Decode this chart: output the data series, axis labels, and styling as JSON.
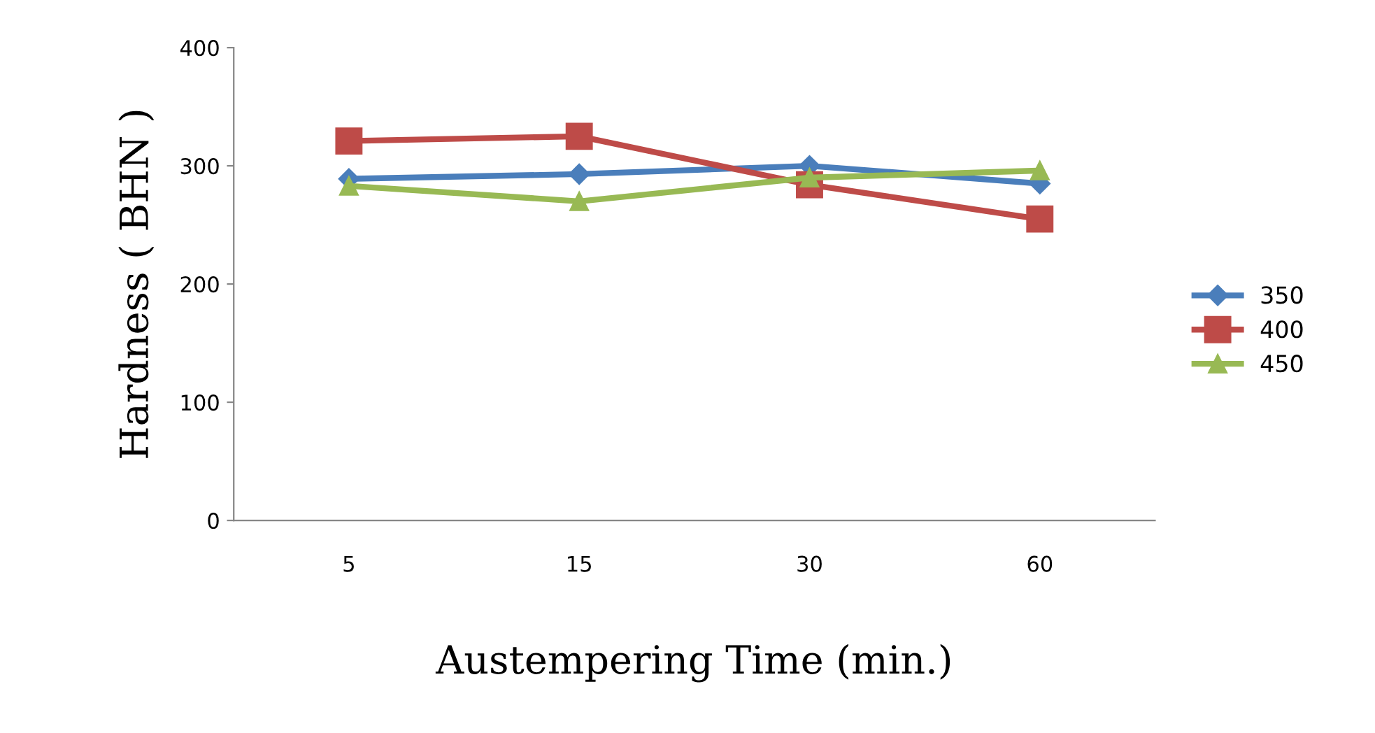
{
  "chart_data": {
    "type": "line",
    "xlabel": "Austempering Time (min.)",
    "ylabel": "Hardness ( BHN )",
    "categories": [
      "5",
      "15",
      "30",
      "60"
    ],
    "series": [
      {
        "name": "350",
        "color": "#4a7ebb",
        "marker": "diamond",
        "values": [
          289,
          293,
          300,
          285
        ]
      },
      {
        "name": "400",
        "color": "#be4b48",
        "marker": "square",
        "values": [
          321,
          325,
          284,
          255
        ]
      },
      {
        "name": "450",
        "color": "#98b954",
        "marker": "triangle",
        "values": [
          283,
          270,
          290,
          296
        ]
      }
    ],
    "ylim": [
      0,
      400
    ],
    "yticks": [
      0,
      100,
      200,
      300,
      400
    ],
    "grid": false,
    "legend": "right",
    "line_style": "solid"
  }
}
